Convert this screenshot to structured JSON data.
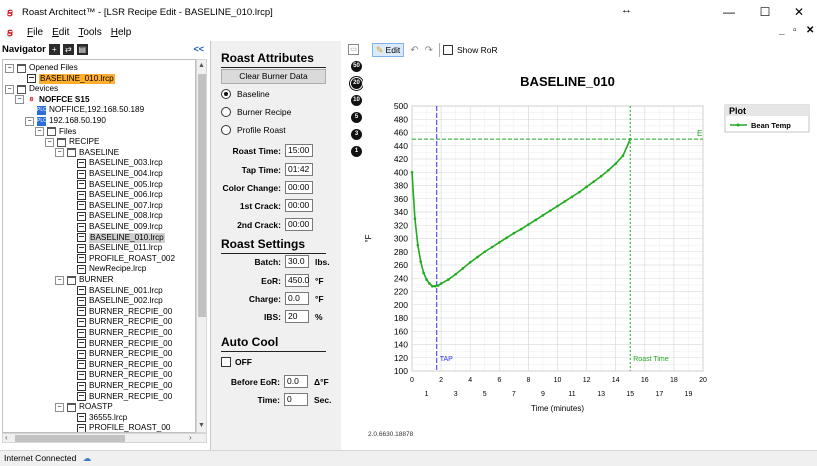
{
  "window": {
    "title": "Roast Architect™ - [LSR Recipe Edit - BASELINE_010.lrcp]",
    "resize_glyph": "↔",
    "minimize": "—",
    "maximize": "☐",
    "close": "✕"
  },
  "menu": {
    "items": [
      {
        "letter": "F",
        "rest": "ile"
      },
      {
        "letter": "E",
        "rest": "dit"
      },
      {
        "letter": "T",
        "rest": "ools"
      },
      {
        "letter": "H",
        "rest": "elp"
      }
    ],
    "mdi_min": "_",
    "mdi_restore": "ð",
    "mdi_close": "✕"
  },
  "navigator": {
    "title": "Navigator",
    "collapse": "<<",
    "tree": [
      {
        "label": "Opened Files",
        "indent": 0,
        "exp": "−",
        "icon": "folder"
      },
      {
        "label": "BASELINE_010.lrcp",
        "indent": 1,
        "icon": "file",
        "style": "sel"
      },
      {
        "label": "Devices",
        "indent": 0,
        "exp": "−",
        "icon": "folder"
      },
      {
        "label": "NOFFCE S15",
        "indent": 1,
        "exp": "−",
        "icon": "device",
        "style": "bold"
      },
      {
        "label": "NOFFICE,192.168.50.189",
        "indent": 2,
        "icon": "plc"
      },
      {
        "label": "192.168.50.190",
        "indent": 2,
        "exp": "−",
        "icon": "plc"
      },
      {
        "label": "Files",
        "indent": 3,
        "exp": "−",
        "icon": "folder"
      },
      {
        "label": "RECIPE",
        "indent": 4,
        "exp": "−",
        "icon": "folder"
      },
      {
        "label": "BASELINE",
        "indent": 5,
        "exp": "−",
        "icon": "folder"
      },
      {
        "label": "BASELINE_003.lrcp",
        "indent": 6,
        "icon": "file"
      },
      {
        "label": "BASELINE_004.lrcp",
        "indent": 6,
        "icon": "file"
      },
      {
        "label": "BASELINE_005.lrcp",
        "indent": 6,
        "icon": "file"
      },
      {
        "label": "BASELINE_006.lrcp",
        "indent": 6,
        "icon": "file"
      },
      {
        "label": "BASELINE_007.lrcp",
        "indent": 6,
        "icon": "file"
      },
      {
        "label": "BASELINE_008.lrcp",
        "indent": 6,
        "icon": "file"
      },
      {
        "label": "BASELINE_009.lrcp",
        "indent": 6,
        "icon": "file"
      },
      {
        "label": "BASELINE_010.lrcp",
        "indent": 6,
        "icon": "file",
        "style": "hl"
      },
      {
        "label": "BASELINE_011.lrcp",
        "indent": 6,
        "icon": "file"
      },
      {
        "label": "PROFILE_ROAST_002",
        "indent": 6,
        "icon": "file"
      },
      {
        "label": "NewRecipe.lrcp",
        "indent": 6,
        "icon": "file"
      },
      {
        "label": "BURNER",
        "indent": 5,
        "exp": "−",
        "icon": "folder"
      },
      {
        "label": "BASELINE_001.lrcp",
        "indent": 6,
        "icon": "file"
      },
      {
        "label": "BASELINE_002.lrcp",
        "indent": 6,
        "icon": "file"
      },
      {
        "label": "BURNER_RECPIE_00",
        "indent": 6,
        "icon": "file"
      },
      {
        "label": "BURNER_RECPIE_00",
        "indent": 6,
        "icon": "file"
      },
      {
        "label": "BURNER_RECPIE_00",
        "indent": 6,
        "icon": "file"
      },
      {
        "label": "BURNER_RECPIE_00",
        "indent": 6,
        "icon": "file"
      },
      {
        "label": "BURNER_RECPIE_00",
        "indent": 6,
        "icon": "file"
      },
      {
        "label": "BURNER_RECPIE_00",
        "indent": 6,
        "icon": "file"
      },
      {
        "label": "BURNER_RECPIE_00",
        "indent": 6,
        "icon": "file"
      },
      {
        "label": "BURNER_RECPIE_00",
        "indent": 6,
        "icon": "file"
      },
      {
        "label": "BURNER_RECPIE_00",
        "indent": 6,
        "icon": "file"
      },
      {
        "label": "ROASTP",
        "indent": 5,
        "exp": "−",
        "icon": "folder"
      },
      {
        "label": "36555.lrcp",
        "indent": 6,
        "icon": "file"
      },
      {
        "label": "PROFILE_ROAST_00",
        "indent": 6,
        "icon": "file"
      }
    ]
  },
  "recipe": {
    "attributes_title": "Roast Attributes",
    "clear_button": "Clear Burner Data",
    "modes": [
      {
        "label": "Baseline",
        "selected": true
      },
      {
        "label": "Burner Recipe",
        "selected": false
      },
      {
        "label": "Profile Roast",
        "selected": false
      }
    ],
    "fields": [
      {
        "label": "Roast Time:",
        "value": "15:00"
      },
      {
        "label": "Tap Time:",
        "value": "01:42"
      },
      {
        "label": "Color Change:",
        "value": "00:00"
      },
      {
        "label": "1st Crack:",
        "value": "00:00"
      },
      {
        "label": "2nd Crack:",
        "value": "00:00"
      }
    ],
    "settings_title": "Roast Settings",
    "settings": [
      {
        "label": "Batch:",
        "value": "30.0",
        "unit": "lbs."
      },
      {
        "label": "EoR:",
        "value": "450.0",
        "unit": "°F"
      },
      {
        "label": "Charge:",
        "value": "0.0",
        "unit": "°F"
      },
      {
        "label": "IBS:",
        "value": "20",
        "unit": "%"
      }
    ],
    "autocool_title": "Auto Cool",
    "autocool_check": "OFF",
    "autocool_fields": [
      {
        "label": "Before EoR:",
        "value": "0.0",
        "unit": "Δ°F"
      },
      {
        "label": "Time:",
        "value": "0",
        "unit": "Sec."
      }
    ]
  },
  "icon_strip": [
    "50",
    "20",
    "10",
    "5",
    "3",
    "1"
  ],
  "chart_toolbar": {
    "edit": "Edit",
    "show_ror": "Show RoR"
  },
  "version": "2.0.6630.18878",
  "status": {
    "text": "Internet Connected"
  },
  "chart_data": {
    "type": "line",
    "title": "BASELINE_010",
    "xlabel": "Time (minutes)",
    "ylabel": "°F",
    "xlim": [
      0,
      20
    ],
    "ylim": [
      100,
      500
    ],
    "x_ticks_top": [
      0,
      2,
      4,
      6,
      8,
      10,
      12,
      14,
      16,
      18,
      20
    ],
    "x_ticks_bottom": [
      1,
      3,
      5,
      7,
      9,
      11,
      13,
      15,
      17,
      19
    ],
    "y_ticks": [
      100,
      120,
      140,
      160,
      180,
      200,
      220,
      240,
      260,
      280,
      300,
      320,
      340,
      360,
      380,
      400,
      420,
      440,
      460,
      480,
      500
    ],
    "grid": true,
    "legend": {
      "title": "Plot",
      "placement": "top-right"
    },
    "series": [
      {
        "name": "Bean Temp",
        "color": "#22aa22",
        "x": [
          0,
          0.2,
          0.4,
          0.6,
          0.8,
          1.0,
          1.2,
          1.4,
          1.6,
          1.8,
          2.0,
          2.5,
          3,
          3.5,
          4,
          4.5,
          5,
          5.5,
          6,
          6.5,
          7,
          7.5,
          8,
          8.5,
          9,
          9.5,
          10,
          10.5,
          11,
          11.5,
          12,
          12.5,
          13,
          13.5,
          14,
          14.5,
          15
        ],
        "y": [
          400,
          330,
          290,
          265,
          248,
          238,
          232,
          228,
          228,
          229,
          232,
          238,
          246,
          255,
          264,
          272,
          280,
          287,
          294,
          301,
          308,
          314,
          321,
          328,
          335,
          342,
          349,
          356,
          363,
          370,
          378,
          386,
          394,
          403,
          413,
          425,
          450
        ]
      }
    ],
    "markers": [
      {
        "label": "TAP",
        "x": 1.7,
        "color": "#3333dd"
      },
      {
        "label": "Roast Time",
        "x": 15,
        "color": "#22aa22"
      }
    ],
    "h_line": {
      "y": 450,
      "color": "#22aa22",
      "label": "E"
    }
  }
}
